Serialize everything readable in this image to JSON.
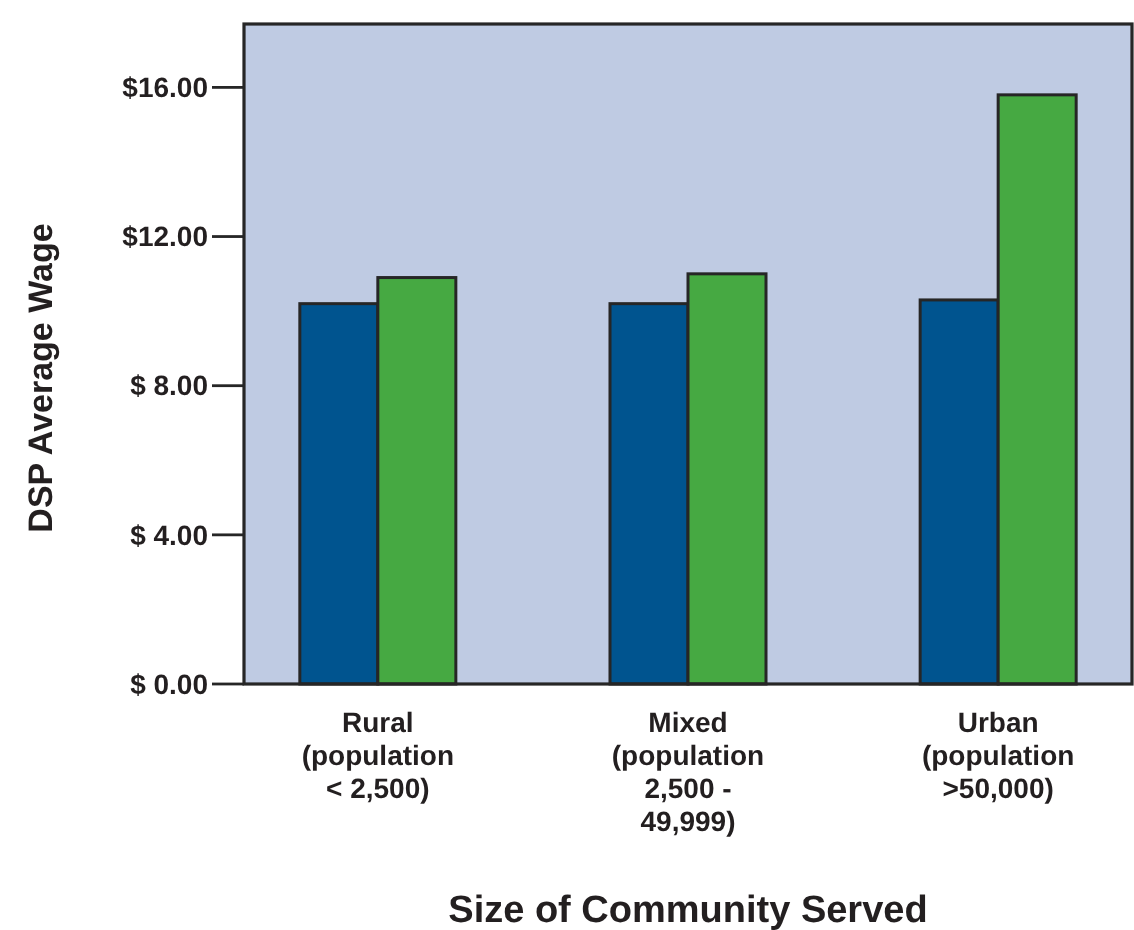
{
  "chart_data": {
    "type": "bar",
    "xlabel": "Size of Community Served",
    "ylabel": "DSP Average Wage",
    "categories": [
      "Rural\n(population\n< 2,500)",
      "Mixed\n(population\n2,500 -\n49,999)",
      "Urban\n(population\n>50,000)"
    ],
    "series": [
      {
        "color": "#00548f",
        "values": [
          10.2,
          10.2,
          10.3
        ]
      },
      {
        "color": "#46a942",
        "values": [
          10.9,
          11.0,
          15.8
        ]
      }
    ],
    "ylim": [
      0,
      17.7
    ],
    "yticks": [
      {
        "value": 0,
        "label": "$ 0.00"
      },
      {
        "value": 4,
        "label": "$ 4.00"
      },
      {
        "value": 8,
        "label": "$ 8.00"
      },
      {
        "value": 12,
        "label": "$12.00"
      },
      {
        "value": 16,
        "label": "$16.00"
      }
    ]
  }
}
